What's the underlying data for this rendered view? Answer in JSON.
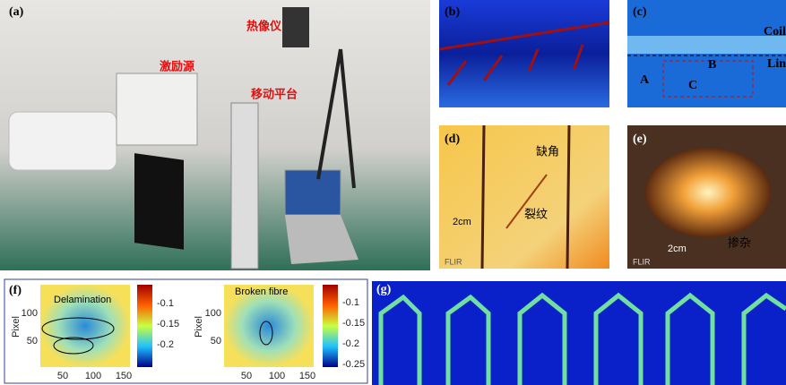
{
  "panels": {
    "a": {
      "label": "(a)",
      "annotations": [
        "热像仪",
        "激励源",
        "移动平台"
      ]
    },
    "b": {
      "label": "(b)"
    },
    "c": {
      "label": "(c)",
      "annotations": [
        "Coil",
        "Lin",
        "A",
        "B",
        "C"
      ]
    },
    "d": {
      "label": "(d)",
      "annotations": [
        "缺角",
        "裂纹",
        "2cm",
        "FLIR"
      ]
    },
    "e": {
      "label": "(e)",
      "annotations": [
        "2cm",
        "掺杂",
        "FLIR"
      ]
    },
    "f": {
      "label": "(f)",
      "plots": [
        {
          "annotation": "Delamination",
          "y_label": "Pixel",
          "yticks": [
            100,
            50
          ],
          "xticks": [
            50,
            100,
            150
          ],
          "colorbar_ticks": [
            -0.1,
            -0.15,
            -0.2
          ]
        },
        {
          "annotation": "Broken fibre",
          "y_label": "Pixel",
          "yticks": [
            100,
            50
          ],
          "xticks": [
            50,
            100,
            150
          ],
          "colorbar_ticks": [
            -0.1,
            -0.15,
            -0.2,
            -0.25
          ]
        }
      ]
    },
    "g": {
      "label": "(g)"
    }
  }
}
